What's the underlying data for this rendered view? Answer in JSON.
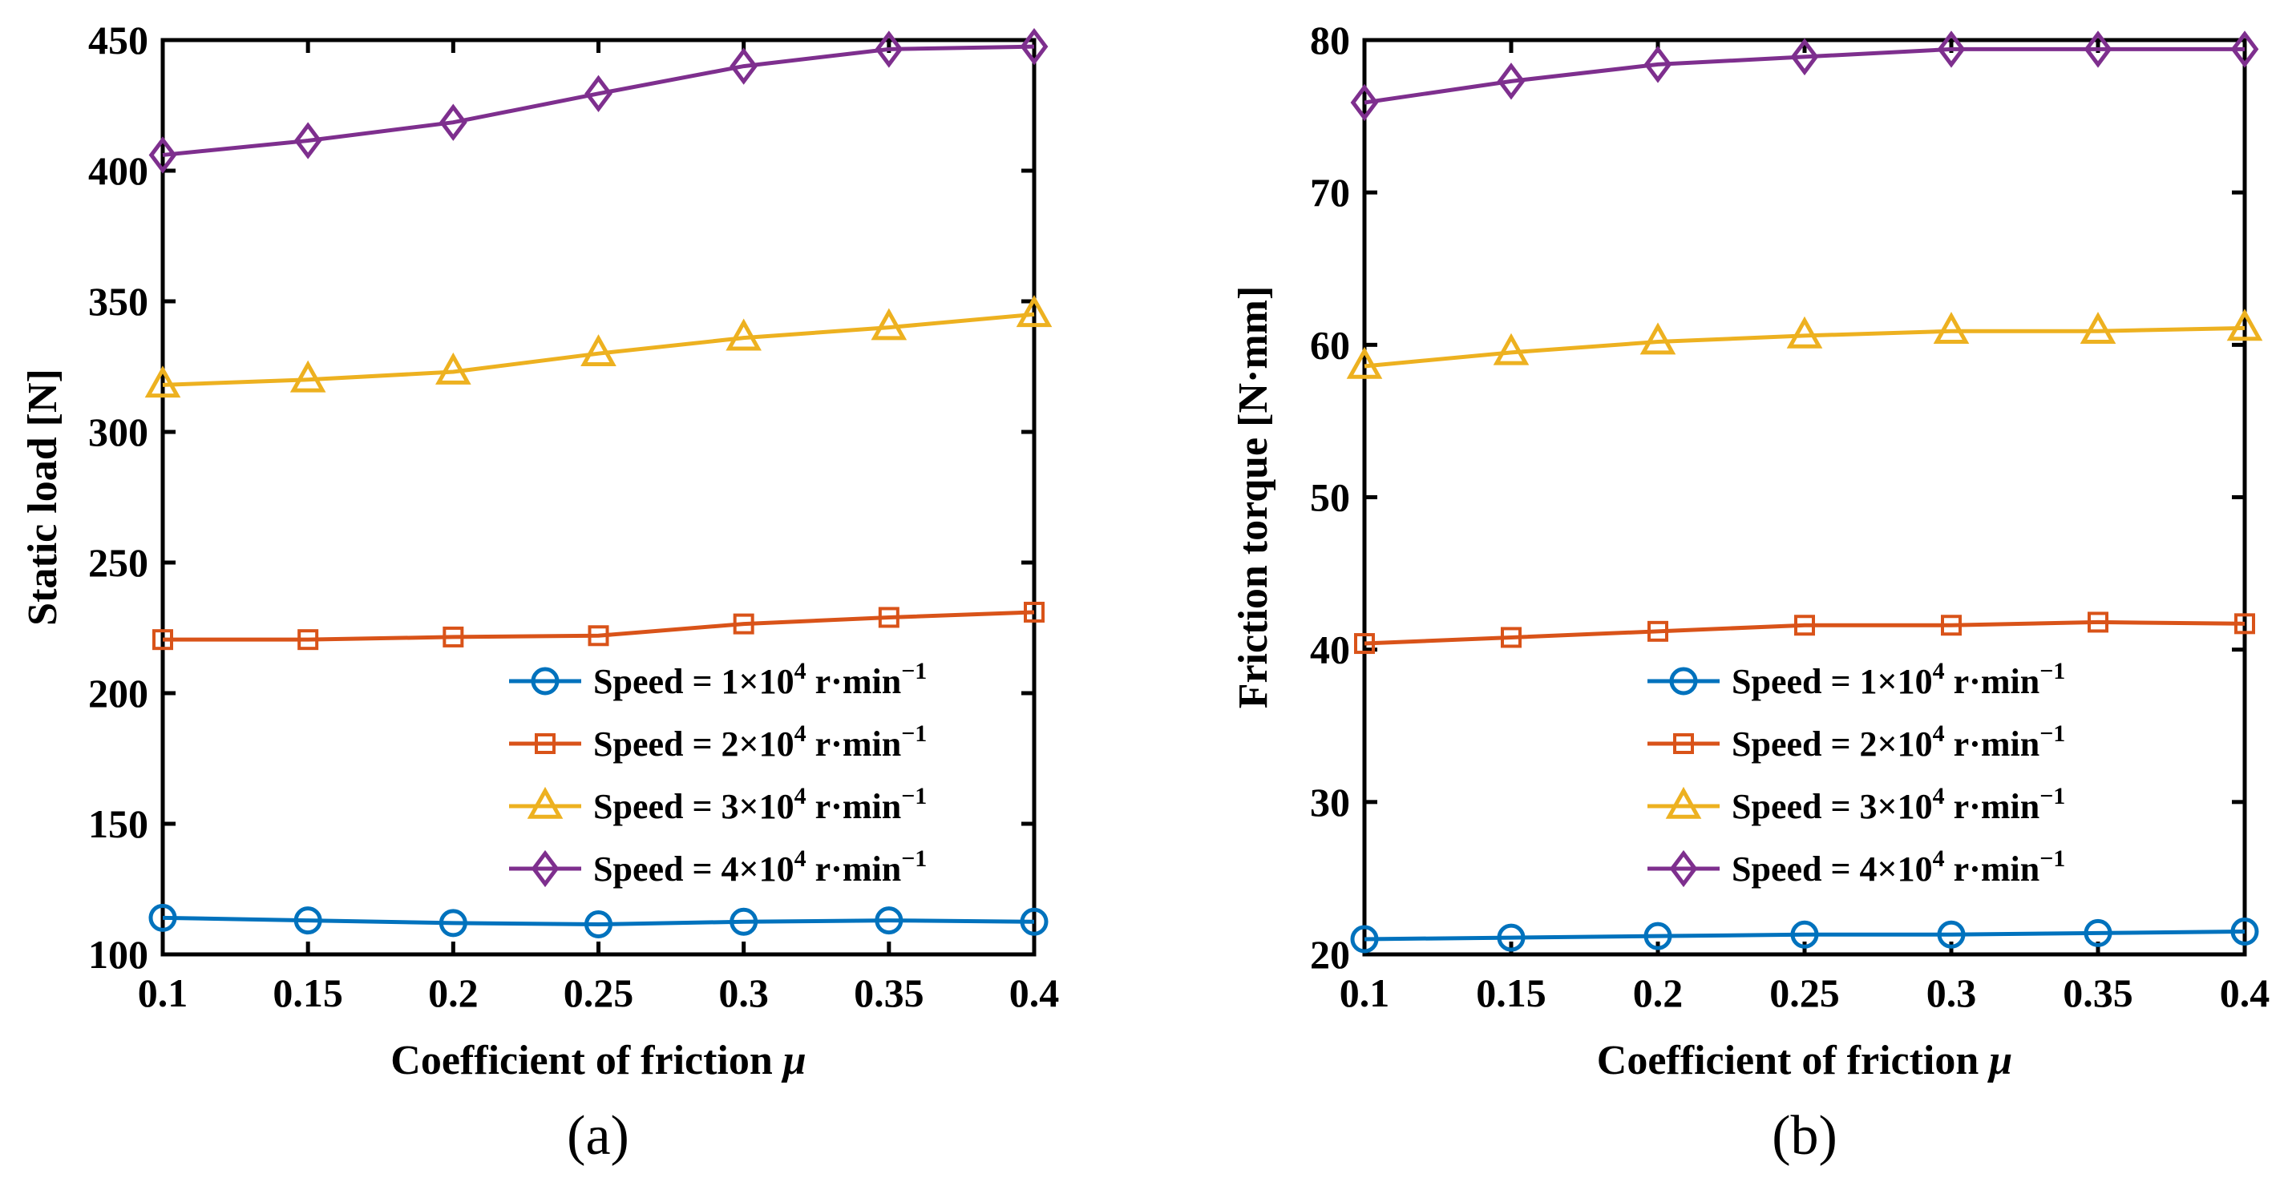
{
  "chart_data": [
    {
      "type": "line",
      "panel_label": "(a)",
      "xlabel": "Coefficient of friction",
      "xlabel_symbol": "μ",
      "ylabel": "Static load [N]",
      "xlim": [
        0.1,
        0.4
      ],
      "ylim": [
        100,
        450
      ],
      "x_ticks": [
        "0.1",
        "0.15",
        "0.2",
        "0.25",
        "0.3",
        "0.35",
        "0.4"
      ],
      "y_ticks": [
        "100",
        "150",
        "200",
        "250",
        "300",
        "350",
        "400",
        "450"
      ],
      "grid": false,
      "legend_position": "bottom-right",
      "x": [
        0.1,
        0.15,
        0.2,
        0.25,
        0.3,
        0.35,
        0.4
      ],
      "series": [
        {
          "name": "Speed = 1×10^4 r·min^-1",
          "label_main": "Speed = 1×10",
          "label_exp": "4",
          "label_unit": " r·min",
          "label_unit_exp": "−1",
          "marker": "circle",
          "color": "#0072BD",
          "values": [
            114,
            113,
            112,
            111.5,
            112.5,
            113,
            112.5
          ]
        },
        {
          "name": "Speed = 2×10^4 r·min^-1",
          "label_main": "Speed = 2×10",
          "label_exp": "4",
          "label_unit": " r·min",
          "label_unit_exp": "−1",
          "marker": "square",
          "color": "#D95319",
          "values": [
            220.5,
            220.5,
            221.5,
            222,
            226.5,
            229,
            231
          ]
        },
        {
          "name": "Speed = 3×10^4 r·min^-1",
          "label_main": "Speed = 3×10",
          "label_exp": "4",
          "label_unit": " r·min",
          "label_unit_exp": "−1",
          "marker": "triangle",
          "color": "#EDB120",
          "values": [
            318,
            320,
            323,
            330,
            336,
            340,
            345
          ]
        },
        {
          "name": "Speed = 4×10^4 r·min^-1",
          "label_main": "Speed = 4×10",
          "label_exp": "4",
          "label_unit": " r·min",
          "label_unit_exp": "−1",
          "marker": "diamond",
          "color": "#7E2F8E",
          "values": [
            406,
            411.5,
            418.5,
            429.5,
            440,
            446.5,
            447.5
          ]
        }
      ]
    },
    {
      "type": "line",
      "panel_label": "(b)",
      "xlabel": "Coefficient of friction",
      "xlabel_symbol": "μ",
      "ylabel": "Friction torque [N·mm]",
      "xlim": [
        0.1,
        0.4
      ],
      "ylim": [
        20,
        80
      ],
      "x_ticks": [
        "0.1",
        "0.15",
        "0.2",
        "0.25",
        "0.3",
        "0.35",
        "0.4"
      ],
      "y_ticks": [
        "20",
        "30",
        "40",
        "50",
        "60",
        "70",
        "80"
      ],
      "grid": false,
      "legend_position": "bottom-right",
      "x": [
        0.1,
        0.15,
        0.2,
        0.25,
        0.3,
        0.35,
        0.4
      ],
      "series": [
        {
          "name": "Speed = 1×10^4 r·min^-1",
          "label_main": "Speed = 1×10",
          "label_exp": "4",
          "label_unit": " r·min",
          "label_unit_exp": "−1",
          "marker": "circle",
          "color": "#0072BD",
          "values": [
            21,
            21.1,
            21.2,
            21.3,
            21.3,
            21.4,
            21.5
          ]
        },
        {
          "name": "Speed = 2×10^4 r·min^-1",
          "label_main": "Speed = 2×10",
          "label_exp": "4",
          "label_unit": " r·min",
          "label_unit_exp": "−1",
          "marker": "square",
          "color": "#D95319",
          "values": [
            40.4,
            40.8,
            41.2,
            41.6,
            41.6,
            41.8,
            41.7
          ]
        },
        {
          "name": "Speed = 3×10^4 r·min^-1",
          "label_main": "Speed = 3×10",
          "label_exp": "4",
          "label_unit": " r·min",
          "label_unit_exp": "−1",
          "marker": "triangle",
          "color": "#EDB120",
          "values": [
            58.6,
            59.5,
            60.2,
            60.6,
            60.9,
            60.9,
            61.1
          ]
        },
        {
          "name": "Speed = 4×10^4 r·min^-1",
          "label_main": "Speed = 4×10",
          "label_exp": "4",
          "label_unit": " r·min",
          "label_unit_exp": "−1",
          "marker": "diamond",
          "color": "#7E2F8E",
          "values": [
            75.9,
            77.3,
            78.4,
            78.9,
            79.4,
            79.4,
            79.4
          ]
        }
      ]
    }
  ]
}
